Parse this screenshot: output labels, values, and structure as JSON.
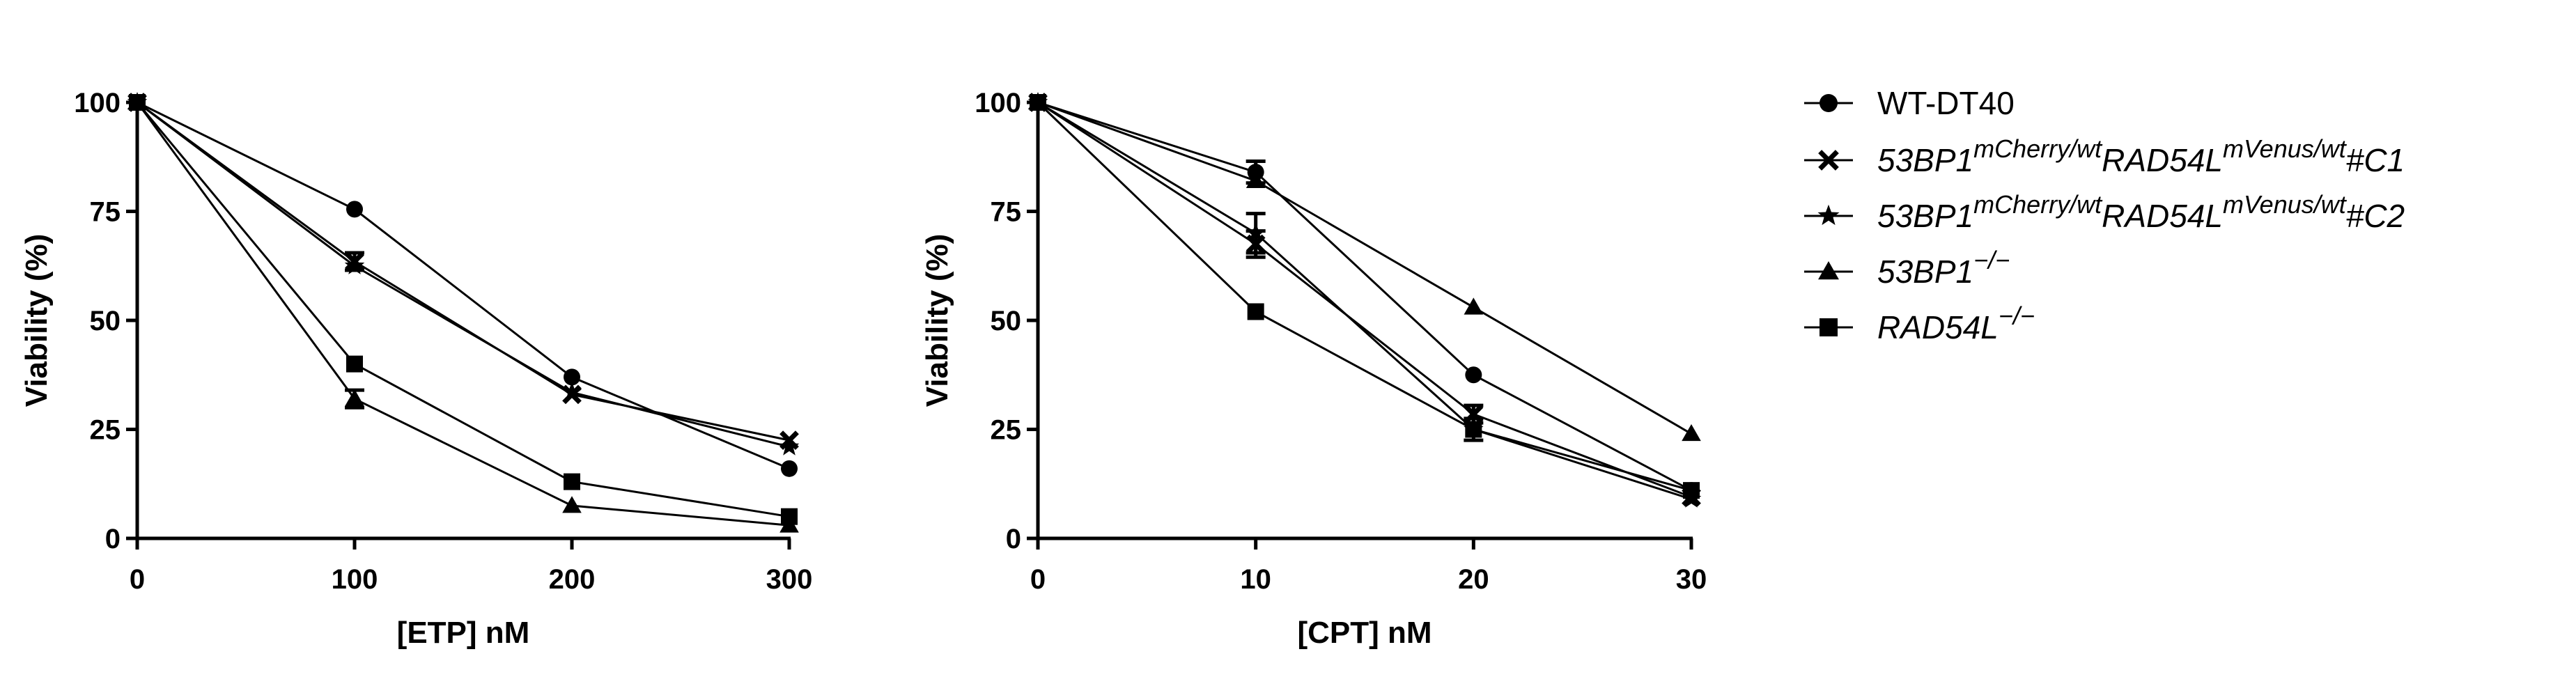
{
  "chart_data": [
    {
      "type": "line",
      "id": "etp",
      "title": "",
      "xlabel": "[ETP] nM",
      "ylabel": "Viability (%)",
      "x": [
        0,
        100,
        200,
        300
      ],
      "xticks": [
        "0",
        "100",
        "200",
        "300"
      ],
      "yticks": [
        "0",
        "25",
        "50",
        "75",
        "100"
      ],
      "xlim": [
        0,
        300
      ],
      "ylim": [
        0,
        100
      ],
      "series": [
        {
          "name": "WT-DT40",
          "marker": "circle",
          "values": [
            100,
            75.5,
            37,
            16
          ]
        },
        {
          "name": "53BP1 mCherry/wt RAD54L mVenus/wt #C1",
          "marker": "x",
          "values": [
            100,
            63.5,
            33,
            22.5
          ],
          "err": [
            0,
            2,
            0,
            0
          ]
        },
        {
          "name": "53BP1 mCherry/wt RAD54L mVenus/wt #C2",
          "marker": "star",
          "values": [
            100,
            62.5,
            33.5,
            21
          ]
        },
        {
          "name": "53BP1 -/-",
          "marker": "triangle",
          "values": [
            100,
            32,
            7.5,
            3
          ],
          "err": [
            0,
            2,
            0,
            0
          ]
        },
        {
          "name": "RAD54L -/-",
          "marker": "square",
          "values": [
            100,
            40,
            13,
            5
          ]
        }
      ]
    },
    {
      "type": "line",
      "id": "cpt",
      "title": "",
      "xlabel": "[CPT] nM",
      "ylabel": "Viability (%)",
      "x": [
        0,
        10,
        20,
        30
      ],
      "xticks": [
        "0",
        "10",
        "20",
        "30"
      ],
      "yticks": [
        "0",
        "25",
        "50",
        "75",
        "100"
      ],
      "xlim": [
        0,
        30
      ],
      "ylim": [
        0,
        100
      ],
      "series": [
        {
          "name": "WT-DT40",
          "marker": "circle",
          "values": [
            100,
            84,
            37.5,
            11
          ],
          "err": [
            0,
            2.5,
            0,
            0
          ]
        },
        {
          "name": "53BP1 mCherry/wt RAD54L mVenus/wt #C1",
          "marker": "x",
          "values": [
            100,
            67.5,
            28.5,
            9.5
          ],
          "err": [
            0,
            3,
            2,
            0
          ]
        },
        {
          "name": "53BP1 mCherry/wt RAD54L mVenus/wt #C2",
          "marker": "star",
          "values": [
            100,
            70,
            25,
            9
          ],
          "err": [
            0,
            4.5,
            0,
            0
          ]
        },
        {
          "name": "53BP1 -/-",
          "marker": "triangle",
          "values": [
            100,
            82,
            53,
            24
          ]
        },
        {
          "name": "RAD54L -/-",
          "marker": "square",
          "values": [
            100,
            52,
            25,
            11
          ],
          "err": [
            0,
            0,
            2.5,
            0
          ]
        }
      ]
    }
  ],
  "legend": {
    "placement": "right",
    "entries": [
      {
        "marker": "circle",
        "parts": [
          {
            "t": "WT-DT40"
          }
        ]
      },
      {
        "marker": "x",
        "parts": [
          {
            "t": "53BP1",
            "i": true
          },
          {
            "t": "mCherry/wt",
            "i": true,
            "sup": true
          },
          {
            "t": "RAD54L",
            "i": true
          },
          {
            "t": "mVenus/wt",
            "i": true,
            "sup": true
          },
          {
            "t": "#C1",
            "i": true
          }
        ]
      },
      {
        "marker": "star",
        "parts": [
          {
            "t": "53BP1",
            "i": true
          },
          {
            "t": "mCherry/wt",
            "i": true,
            "sup": true
          },
          {
            "t": "RAD54L",
            "i": true
          },
          {
            "t": "mVenus/wt",
            "i": true,
            "sup": true
          },
          {
            "t": "#C2",
            "i": true
          }
        ]
      },
      {
        "marker": "triangle",
        "parts": [
          {
            "t": "53BP1",
            "i": true
          },
          {
            "t": "−/−",
            "i": true,
            "sup": true
          }
        ]
      },
      {
        "marker": "square",
        "parts": [
          {
            "t": "RAD54L",
            "i": true
          },
          {
            "t": "−/−",
            "i": true,
            "sup": true
          }
        ]
      }
    ]
  }
}
